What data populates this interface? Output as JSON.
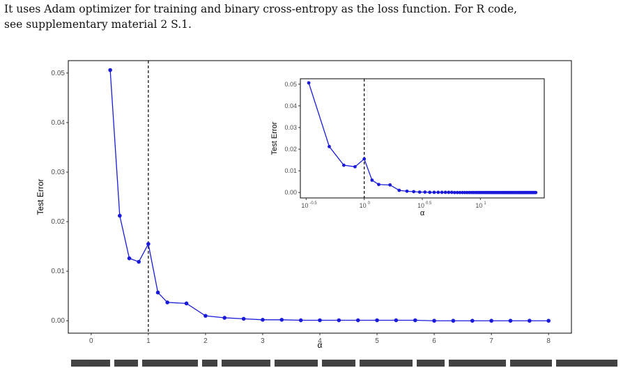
{
  "text": {
    "line1": "It uses Adam optimizer for training and binary cross-entropy as the loss function. For R code,",
    "line2": "see supplementary material 2 S.1."
  },
  "colors": {
    "series": "#1a1adb",
    "reference_line": "#000000",
    "frame": "#000000"
  },
  "chart_data": [
    {
      "type": "line",
      "xlabel": "α",
      "ylabel": "Test Error",
      "xlim": [
        -0.4,
        8.4
      ],
      "ylim": [
        -0.0025,
        0.0525
      ],
      "xticks": [
        0,
        1,
        2,
        3,
        4,
        5,
        6,
        7,
        8
      ],
      "xticklabels": [
        "0",
        "1",
        "2",
        "3",
        "4",
        "5",
        "6",
        "7",
        "8"
      ],
      "yticks": [
        0.0,
        0.01,
        0.02,
        0.03,
        0.04,
        0.05
      ],
      "yticklabels": [
        "0.00",
        "0.01",
        "0.02",
        "0.03",
        "0.04",
        "0.05"
      ],
      "reference_x": 1,
      "grid": false,
      "x": [
        0.333,
        0.5,
        0.667,
        0.833,
        1.0,
        1.167,
        1.333,
        1.667,
        2.0,
        2.333,
        2.667,
        3.0,
        3.333,
        3.667,
        4.0,
        4.333,
        4.667,
        5.0,
        5.333,
        5.667,
        6.0,
        6.333,
        6.667,
        7.0,
        7.333,
        7.667,
        8.0
      ],
      "y": [
        0.0506,
        0.0212,
        0.0126,
        0.0119,
        0.0155,
        0.0057,
        0.0037,
        0.0035,
        0.001,
        0.0006,
        0.0004,
        0.0002,
        0.0002,
        0.0001,
        0.0001,
        0.0001,
        0.0001,
        0.0001,
        0.0001,
        0.0001,
        0.0,
        0.0,
        0.0,
        0.0,
        0.0,
        0.0,
        0.0
      ]
    },
    {
      "type": "line",
      "xlabel": "α",
      "ylabel": "Test Error",
      "xscale": "log10",
      "xlim": [
        -0.55,
        1.55
      ],
      "ylim": [
        -0.0025,
        0.0525
      ],
      "xticks": [
        -0.5,
        0,
        0.5,
        1
      ],
      "xticklabels_base": [
        "10",
        "10",
        "10",
        "10"
      ],
      "xticklabels_exp": [
        "-0.5",
        "0",
        "0.5",
        "1"
      ],
      "yticks": [
        0.0,
        0.01,
        0.02,
        0.03,
        0.04,
        0.05
      ],
      "yticklabels": [
        "0.00",
        "0.01",
        "0.02",
        "0.03",
        "0.04",
        "0.05"
      ],
      "reference_x": 1,
      "grid": false,
      "x": [
        0.333,
        0.5,
        0.667,
        0.833,
        1.0,
        1.167,
        1.333,
        1.667,
        2.0,
        2.333,
        2.667,
        3.0,
        3.333,
        3.667,
        4.0,
        4.333,
        4.667,
        5.0,
        5.333,
        5.667,
        6.0,
        6.333,
        6.667,
        7.0,
        7.333,
        7.667,
        8.0,
        8.333,
        8.667,
        9.0,
        9.333,
        9.667,
        10.0,
        10.333,
        10.667,
        11.0,
        11.333,
        11.667,
        12.0,
        12.333,
        12.667,
        13.0,
        13.333,
        13.667,
        14.0,
        14.333,
        14.667,
        15.0,
        15.333,
        15.667,
        16.0,
        16.333,
        16.667,
        17.0,
        17.333,
        17.667,
        18.0,
        18.333,
        18.667,
        19.0,
        19.333,
        19.667,
        20.0,
        20.333,
        20.667,
        21.0,
        21.333,
        21.667,
        22.0,
        22.333,
        22.667,
        23.0,
        23.333,
        23.667,
        24.0,
        24.333,
        24.667,
        25.0,
        25.333,
        25.667,
        26.0,
        26.333,
        26.667,
        27.0,
        27.333,
        27.667,
        28.0,
        28.333,
        28.667,
        29.0,
        29.333,
        29.667,
        30.0
      ],
      "y": [
        0.0506,
        0.0212,
        0.0126,
        0.0119,
        0.0155,
        0.0057,
        0.0037,
        0.0035,
        0.001,
        0.0006,
        0.0004,
        0.0002,
        0.0002,
        0.0001,
        0.0001,
        0.0001,
        0.0001,
        0.0001,
        0.0001,
        0.0001,
        0,
        0,
        0,
        0,
        0,
        0,
        0,
        0,
        0,
        0,
        0,
        0,
        0,
        0,
        0,
        0,
        0,
        0,
        0,
        0,
        0,
        0,
        0,
        0,
        0,
        0,
        0,
        0,
        0,
        0,
        0,
        0,
        0,
        0,
        0,
        0,
        0,
        0,
        0,
        0,
        0,
        0,
        0,
        0,
        0,
        0,
        0,
        0,
        0,
        0,
        0,
        0,
        0,
        0,
        0,
        0,
        0,
        0,
        0,
        0,
        0,
        0,
        0,
        0,
        0,
        0,
        0,
        0,
        0,
        0,
        0,
        0,
        0
      ]
    }
  ]
}
